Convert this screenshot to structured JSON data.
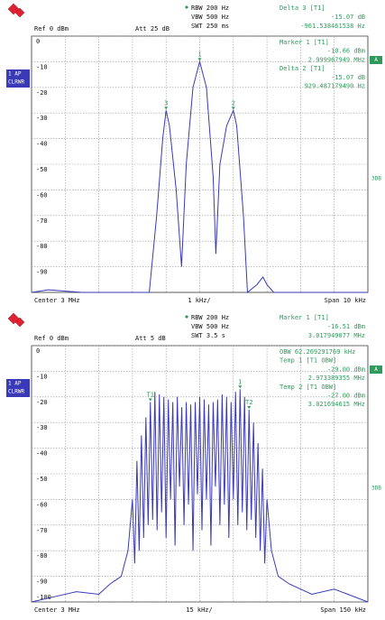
{
  "chart_data": [
    {
      "type": "line",
      "settings_top": [
        "RBW 200 Hz",
        "VBW 500 Hz",
        "SWT 250 ms"
      ],
      "ref": "Ref 0 dBm",
      "att": "Att 25 dB",
      "info_top": [
        "Delta 3 [T1]",
        "-15.07 dB",
        "-961.538461538 Hz"
      ],
      "info_box": [
        "Marker 1 [T1]",
        "-10.66 dBm",
        "2.999967949 MHz",
        "Delta 2 [T1]",
        "-15.07 dB",
        "929.487179490 Hz"
      ],
      "left_labels": [
        "1 AP",
        "CLRWR"
      ],
      "right_labels": [
        "A",
        "3DB"
      ],
      "footer": [
        "Center 3 MHz",
        "1 kHz/",
        "Span 10 kHz"
      ],
      "xlim": [
        2.995,
        3.005
      ],
      "ylim": [
        -100,
        0
      ],
      "yticks": [
        0,
        -10,
        -20,
        -30,
        -40,
        -50,
        -60,
        -70,
        -80,
        -90
      ],
      "grid": true,
      "series": [
        {
          "name": "1 AP",
          "color": "#3a3ab8",
          "x": [
            2.995,
            2.9955,
            2.9965,
            2.9975,
            2.9985,
            2.99872,
            2.9989,
            2.999,
            2.9991,
            2.9993,
            2.99946,
            2.9996,
            2.9998,
            3.0,
            3.0002,
            3.0004,
            3.00048,
            3.0006,
            3.0008,
            3.001,
            3.0011,
            3.0013,
            3.00142,
            3.0017,
            3.00188,
            3.002,
            3.0022,
            3.005
          ],
          "values": [
            -100,
            -99,
            -100,
            -100,
            -100,
            -70,
            -40,
            -29,
            -35,
            -60,
            -90,
            -50,
            -20,
            -10,
            -20,
            -55,
            -85,
            -50,
            -35,
            -29,
            -35,
            -70,
            -100,
            -97,
            -94,
            -97,
            -100,
            -100
          ]
        }
      ],
      "markers": [
        {
          "label": "1",
          "x": 3.0,
          "y": -10
        },
        {
          "label": "2",
          "x": 3.001,
          "y": -29
        },
        {
          "label": "3",
          "x": 2.999,
          "y": -29
        }
      ]
    },
    {
      "type": "line",
      "settings_top": [
        "RBW 200 Hz",
        "VBW 500 Hz",
        "SWT 3.5 s"
      ],
      "ref": "Ref 0 dBm",
      "att": "Att 5 dB",
      "info_top": [
        "Marker 1 [T1]",
        "-16.51 dBm",
        "3.017949077 MHz"
      ],
      "info_box": [
        "OBW 62.269291769 kHz",
        "Temp 1 [T1 OBW]",
        "-29.00 dBm",
        "2.973389355 MHz",
        "Temp 2 [T1 OBW]",
        "-27.00 dBm",
        "3.021694615 MHz"
      ],
      "left_labels": [
        "1 AP",
        "CLRWR"
      ],
      "right_labels": [
        "A",
        "3DB"
      ],
      "footer": [
        "Center 3 MHz",
        "15 kHz/",
        "Span 150 kHz"
      ],
      "xlim": [
        2.925,
        3.075
      ],
      "ylim": [
        -100,
        0
      ],
      "yticks": [
        0,
        -10,
        -20,
        -30,
        -40,
        -50,
        -60,
        -70,
        -80,
        -90,
        -100
      ],
      "grid": true,
      "series": [
        {
          "name": "1 AP",
          "color": "#3a3ab8",
          "x": [
            2.925,
            2.935,
            2.945,
            2.955,
            2.96,
            2.965,
            2.968,
            2.97,
            2.971,
            2.972,
            2.973,
            2.974,
            2.975,
            2.976,
            2.977,
            2.978,
            2.979,
            2.98,
            2.981,
            2.982,
            2.983,
            2.984,
            2.985,
            2.986,
            2.987,
            2.988,
            2.989,
            2.99,
            2.991,
            2.992,
            2.993,
            2.994,
            2.995,
            2.996,
            2.997,
            2.998,
            2.999,
            3.0,
            3.001,
            3.002,
            3.003,
            3.004,
            3.005,
            3.006,
            3.007,
            3.008,
            3.009,
            3.01,
            3.011,
            3.012,
            3.013,
            3.014,
            3.015,
            3.016,
            3.017,
            3.018,
            3.019,
            3.02,
            3.021,
            3.022,
            3.023,
            3.024,
            3.025,
            3.026,
            3.027,
            3.028,
            3.029,
            3.03,
            3.032,
            3.035,
            3.04,
            3.05,
            3.06,
            3.075
          ],
          "values": [
            -100,
            -98,
            -96,
            -97,
            -93,
            -90,
            -80,
            -60,
            -85,
            -45,
            -80,
            -35,
            -75,
            -28,
            -70,
            -22,
            -68,
            -18,
            -72,
            -19,
            -65,
            -20,
            -75,
            -21,
            -60,
            -22,
            -78,
            -20,
            -55,
            -24,
            -70,
            -22,
            -62,
            -23,
            -80,
            -22,
            -58,
            -20,
            -72,
            -21,
            -60,
            -23,
            -78,
            -22,
            -55,
            -21,
            -70,
            -19,
            -62,
            -20,
            -75,
            -22,
            -60,
            -18,
            -70,
            -17,
            -65,
            -20,
            -72,
            -25,
            -68,
            -30,
            -75,
            -38,
            -80,
            -48,
            -85,
            -60,
            -80,
            -90,
            -93,
            -97,
            -95,
            -100
          ]
        }
      ],
      "markers": [
        {
          "label": "1",
          "x": 3.018,
          "y": -17
        },
        {
          "label": "T1",
          "x": 2.978,
          "y": -22
        },
        {
          "label": "T2",
          "x": 3.022,
          "y": -25
        }
      ]
    }
  ]
}
